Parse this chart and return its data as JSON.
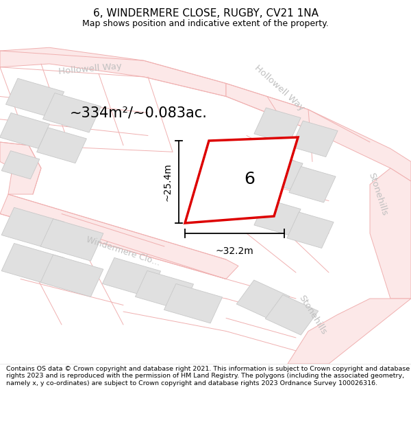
{
  "title": "6, WINDERMERE CLOSE, RUGBY, CV21 1NA",
  "subtitle": "Map shows position and indicative extent of the property.",
  "footer": "Contains OS data © Crown copyright and database right 2021. This information is subject to Crown copyright and database rights 2023 and is reproduced with the permission of HM Land Registry. The polygons (including the associated geometry, namely x, y co-ordinates) are subject to Crown copyright and database rights 2023 Ordnance Survey 100026316.",
  "area_label": "~334m²/~0.083ac.",
  "number_label": "6",
  "width_label": "~32.2m",
  "height_label": "~25.4m",
  "road_line_color": "#f0b0b0",
  "road_fill_color": "#fce8e8",
  "building_color": "#e0e0e0",
  "building_edge_color": "#c8c8c8",
  "plot_edge_color": "#dd0000",
  "plot_fill_color": "#ffffff",
  "label_color": "#c0c0c0",
  "map_bg": "#ffffff"
}
